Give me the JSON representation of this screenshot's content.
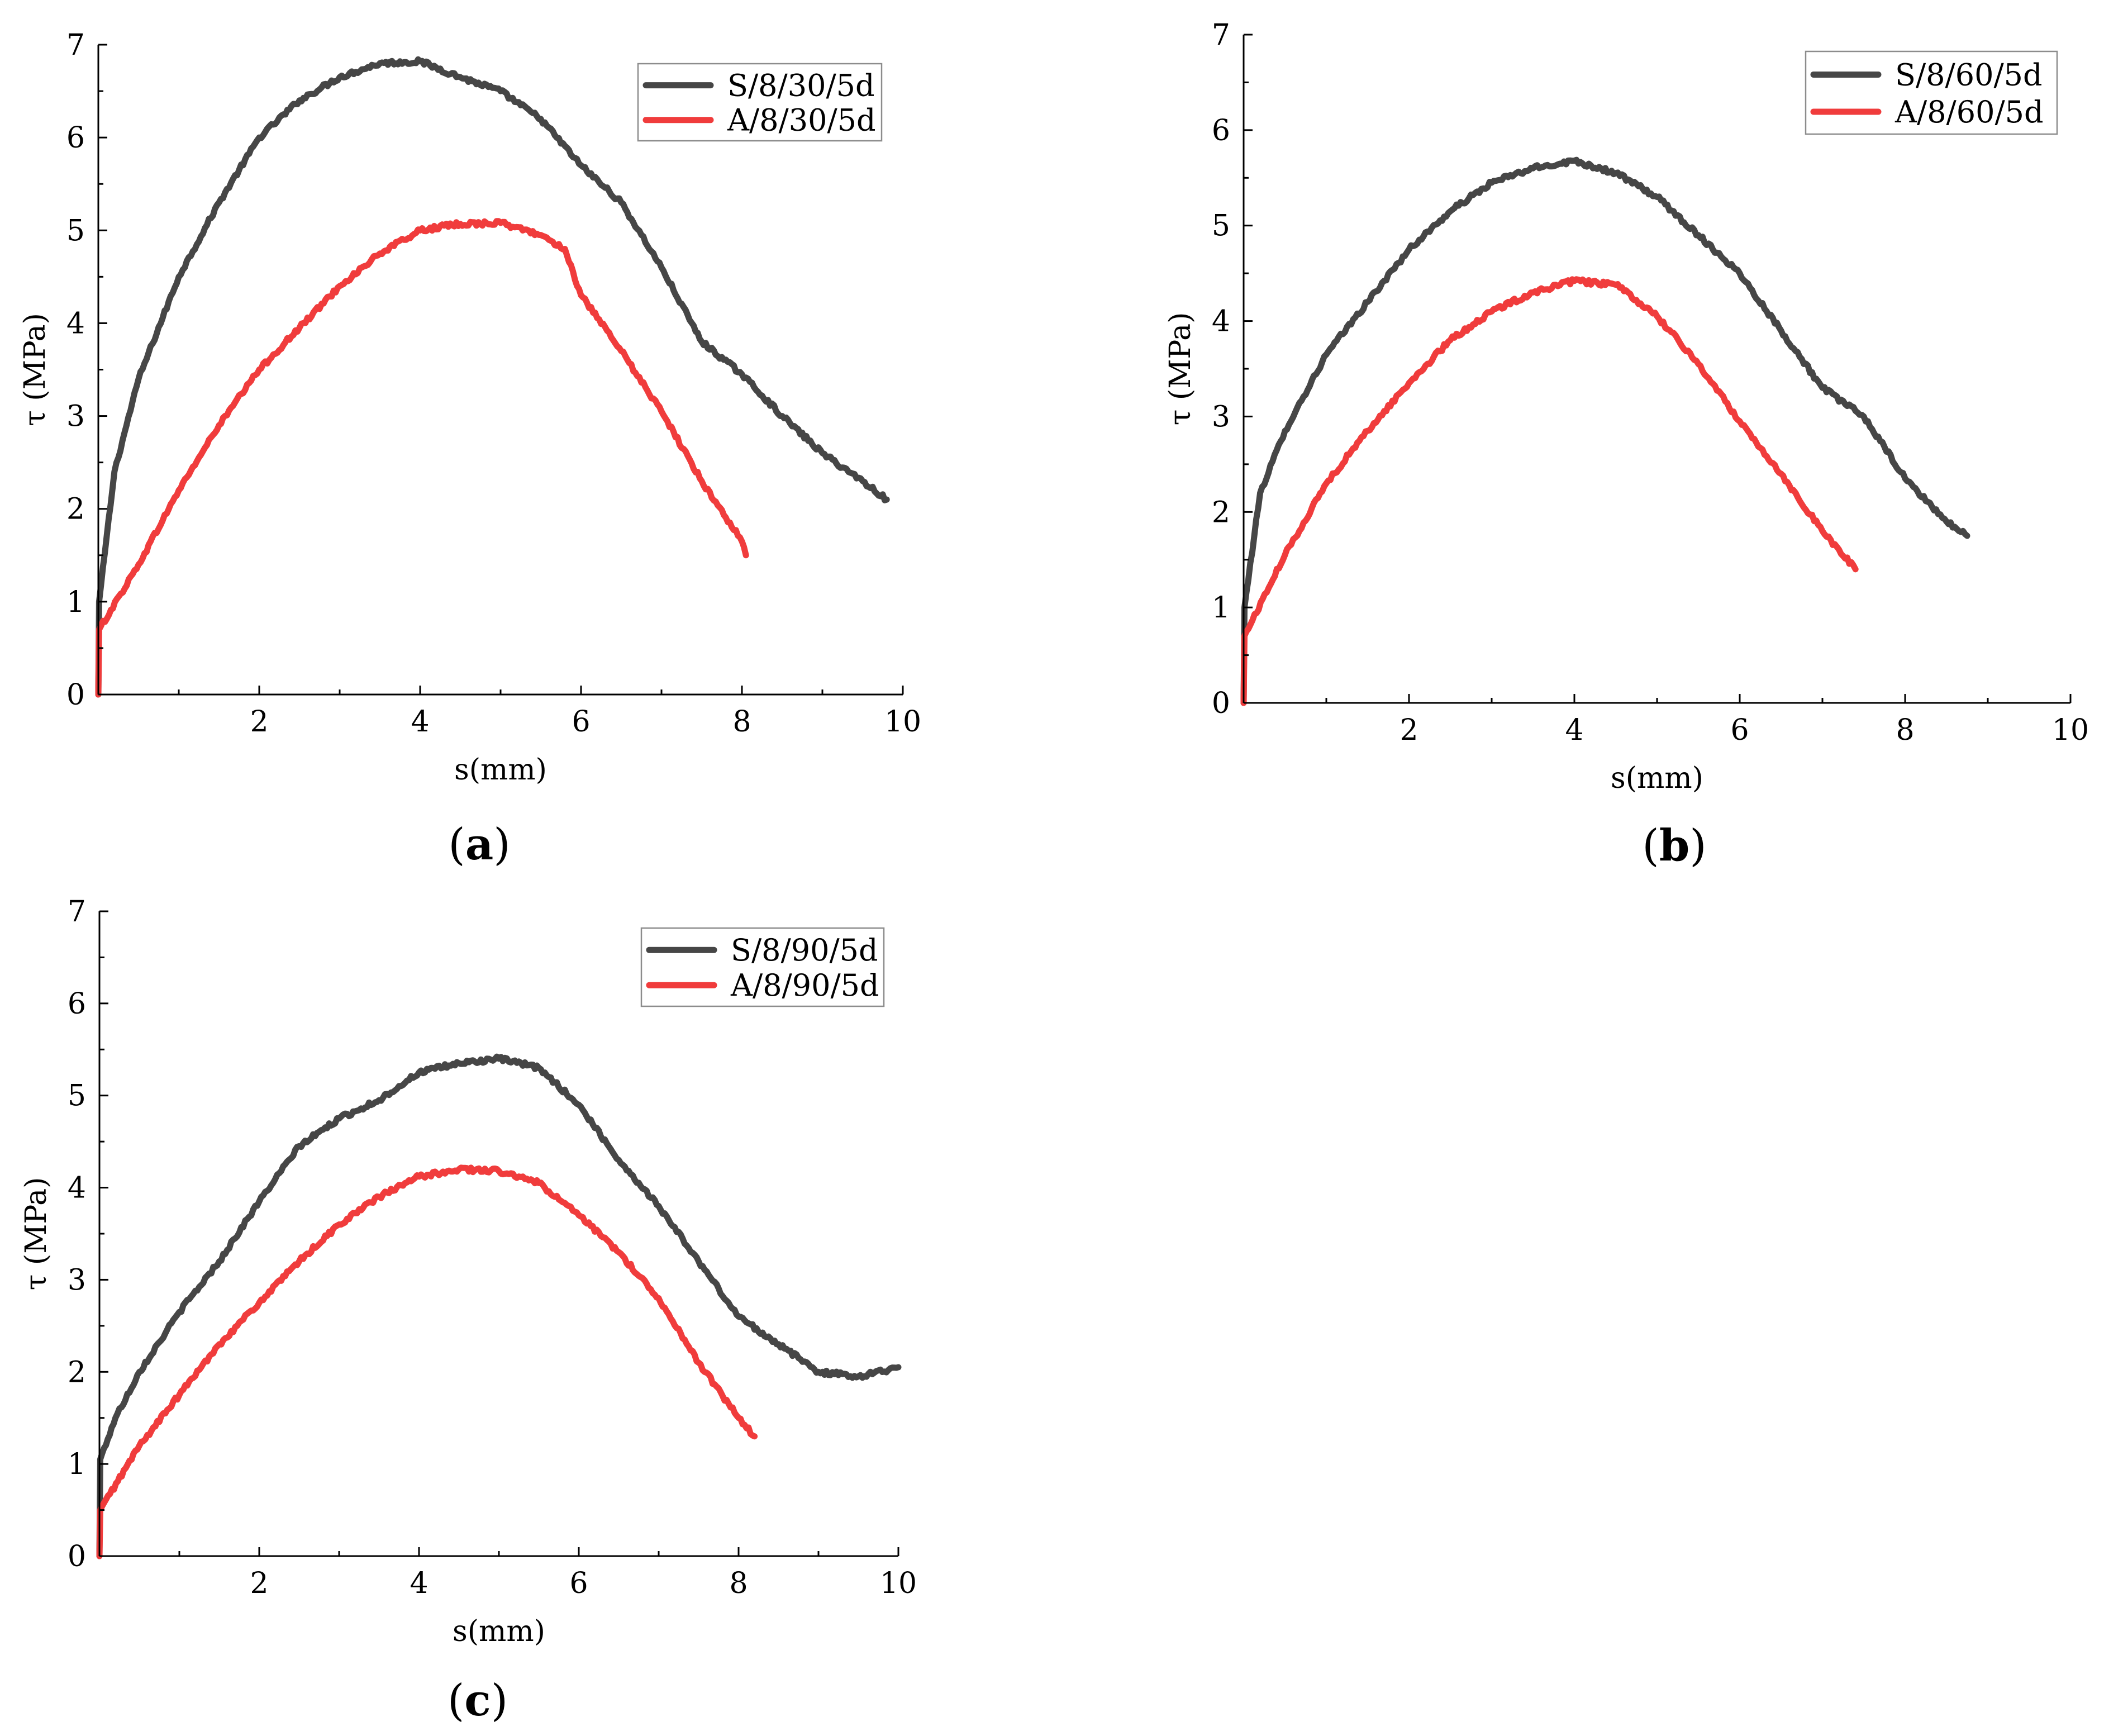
{
  "chart_data": [
    {
      "id": "a",
      "type": "line",
      "panel_label": "a",
      "xlabel": "s(mm)",
      "ylabel": "τ (MPa)",
      "xlim": [
        0,
        10
      ],
      "ylim": [
        0,
        7
      ],
      "xticks": [
        2,
        4,
        6,
        8,
        10
      ],
      "yticks": [
        0,
        1,
        2,
        3,
        4,
        5,
        6,
        7
      ],
      "legend_position": "top-right",
      "series": [
        {
          "name": "S/8/30/5d",
          "color": "#464646",
          "x": [
            0,
            0.01,
            0.2,
            0.5,
            1,
            1.5,
            2,
            2.5,
            3,
            3.5,
            4,
            4.5,
            5,
            5.5,
            6,
            6.5,
            7,
            7.5,
            8,
            8.5,
            9,
            9.5,
            9.8
          ],
          "y": [
            0,
            1.0,
            2.4,
            3.4,
            4.5,
            5.3,
            6.0,
            6.4,
            6.65,
            6.8,
            6.82,
            6.65,
            6.5,
            6.2,
            5.7,
            5.3,
            4.6,
            3.8,
            3.45,
            3.0,
            2.6,
            2.3,
            2.1
          ]
        },
        {
          "name": "A/8/30/5d",
          "color": "#f03c3c",
          "x": [
            0,
            0.01,
            0.5,
            1,
            1.5,
            2,
            2.5,
            3,
            3.5,
            4,
            4.5,
            5,
            5.5,
            5.8,
            6,
            6.5,
            7,
            7.5,
            8,
            8.05
          ],
          "y": [
            0,
            0.7,
            1.4,
            2.2,
            2.9,
            3.5,
            3.95,
            4.4,
            4.75,
            5.0,
            5.07,
            5.08,
            4.95,
            4.8,
            4.3,
            3.7,
            3.05,
            2.3,
            1.65,
            1.5
          ]
        }
      ]
    },
    {
      "id": "b",
      "type": "line",
      "panel_label": "b",
      "xlabel": "s(mm)",
      "ylabel": "τ (MPa)",
      "xlim": [
        0,
        10
      ],
      "ylim": [
        0,
        7
      ],
      "xticks": [
        2,
        4,
        6,
        8,
        10
      ],
      "yticks": [
        0,
        1,
        2,
        3,
        4,
        5,
        6,
        7
      ],
      "legend_position": "top-right",
      "series": [
        {
          "name": "S/8/60/5d",
          "color": "#464646",
          "x": [
            0,
            0.01,
            0.2,
            0.5,
            1,
            1.5,
            2,
            2.5,
            3,
            3.5,
            4,
            4.5,
            5,
            5.5,
            6,
            6.5,
            7,
            7.5,
            8,
            8.5,
            8.75
          ],
          "y": [
            0,
            1.0,
            2.2,
            2.85,
            3.65,
            4.2,
            4.75,
            5.15,
            5.45,
            5.6,
            5.68,
            5.55,
            5.3,
            4.9,
            4.5,
            3.9,
            3.3,
            3.0,
            2.35,
            1.9,
            1.75
          ]
        },
        {
          "name": "A/8/60/5d",
          "color": "#f03c3c",
          "x": [
            0,
            0.01,
            0.5,
            1,
            1.5,
            2,
            2.5,
            3,
            3.5,
            4,
            4.5,
            5,
            5.5,
            6,
            6.5,
            7,
            7.4
          ],
          "y": [
            0,
            0.7,
            1.55,
            2.3,
            2.85,
            3.35,
            3.8,
            4.1,
            4.3,
            4.42,
            4.38,
            4.05,
            3.55,
            2.95,
            2.4,
            1.8,
            1.4
          ]
        }
      ]
    },
    {
      "id": "c",
      "type": "line",
      "panel_label": "c",
      "xlabel": "s(mm)",
      "ylabel": "τ (MPa)",
      "xlim": [
        0,
        10
      ],
      "ylim": [
        0,
        7
      ],
      "xticks": [
        2,
        4,
        6,
        8,
        10
      ],
      "yticks": [
        0,
        1,
        2,
        3,
        4,
        5,
        6,
        7
      ],
      "legend_position": "top-right",
      "series": [
        {
          "name": "S/8/90/5d",
          "color": "#464646",
          "x": [
            0,
            0.01,
            0.2,
            0.5,
            1,
            1.5,
            2,
            2.5,
            3,
            3.5,
            4,
            4.5,
            5,
            5.5,
            6,
            6.5,
            7,
            7.5,
            8,
            8.5,
            9,
            9.5,
            10
          ],
          "y": [
            0,
            1.05,
            1.5,
            2.0,
            2.65,
            3.2,
            3.85,
            4.45,
            4.75,
            4.95,
            5.25,
            5.35,
            5.4,
            5.3,
            4.9,
            4.3,
            3.8,
            3.2,
            2.6,
            2.3,
            2.0,
            1.95,
            2.05
          ]
        },
        {
          "name": "A/8/90/5d",
          "color": "#f03c3c",
          "x": [
            0,
            0.01,
            0.5,
            1,
            1.5,
            2,
            2.5,
            3,
            3.5,
            4,
            4.5,
            5,
            5.5,
            6,
            6.5,
            7,
            7.5,
            8,
            8.2
          ],
          "y": [
            0,
            0.5,
            1.2,
            1.75,
            2.3,
            2.75,
            3.2,
            3.6,
            3.9,
            4.12,
            4.2,
            4.18,
            4.05,
            3.7,
            3.3,
            2.8,
            2.1,
            1.5,
            1.3
          ]
        }
      ]
    }
  ]
}
